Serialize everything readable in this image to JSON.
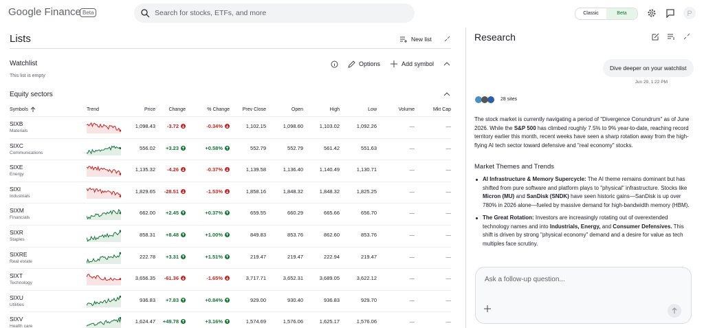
{
  "header": {
    "logo": "Google Finance",
    "badge": "Beta",
    "search_placeholder": "Search for stocks, ETFs, and more",
    "toggle": [
      "Classic",
      "Beta"
    ]
  },
  "lists": {
    "title": "Lists",
    "new_list": "New list",
    "watchlist": {
      "title": "Watchlist",
      "empty": "This list is empty",
      "options": "Options",
      "add_symbol": "Add symbol"
    },
    "sector": {
      "title": "Equity sectors",
      "columns": [
        "Symbols",
        "Trend",
        "Price",
        "Change",
        "% Change",
        "Prev Close",
        "Open",
        "High",
        "Low",
        "Volume",
        "Mkt Cap"
      ],
      "rows": [
        [
          "SIXB",
          "Materials",
          "1,098.43",
          "-3.72",
          "-0.34%",
          "1,102.15",
          "1,098.60",
          "1,103.02",
          "1,092.26",
          "—",
          "—"
        ],
        [
          "SIXC",
          "Communications",
          "556.02",
          "+3.23",
          "+0.58%",
          "552.79",
          "552.79",
          "561.42",
          "551.63",
          "—",
          "—"
        ],
        [
          "SIXE",
          "Energy",
          "1,135.32",
          "-4.26",
          "-0.37%",
          "1,139.58",
          "1,136.40",
          "1,140.49",
          "1,130.71",
          "—",
          "—"
        ],
        [
          "SIXI",
          "Industrials",
          "1,829.65",
          "-28.51",
          "-1.53%",
          "1,858.16",
          "1,848.32",
          "1,848.32",
          "1,825.25",
          "—",
          "—"
        ],
        [
          "SIXM",
          "Financials",
          "662.00",
          "+2.45",
          "+0.37%",
          "659.55",
          "660.29",
          "665.66",
          "656.70",
          "—",
          "—"
        ],
        [
          "SIXR",
          "Staples",
          "858.31",
          "+8.48",
          "+1.00%",
          "849.83",
          "853.76",
          "862.60",
          "853.76",
          "—",
          "—"
        ],
        [
          "SIXRE",
          "Real estate",
          "222.78",
          "+3.31",
          "+1.51%",
          "219.47",
          "219.47",
          "222.94",
          "219.47",
          "—",
          "—"
        ],
        [
          "SIXT",
          "Technology",
          "3,656.35",
          "-61.36",
          "-1.65%",
          "3,717.71",
          "3,652.31",
          "3,689.05",
          "3,622.12",
          "—",
          "—"
        ],
        [
          "SIXU",
          "Utilities",
          "936.83",
          "+7.83",
          "+0.84%",
          "929.00",
          "930.40",
          "936.83",
          "929.70",
          "—",
          "—"
        ],
        [
          "SIXV",
          "Health care",
          "1,624.47",
          "+49.78",
          "+3.16%",
          "1,574.69",
          "1,576.06",
          "1,625.17",
          "1,576.06",
          "—",
          "—"
        ]
      ]
    }
  },
  "research": {
    "title": "Research",
    "user_message": "Dive deeper on your watchlist",
    "timestamp": "Jun 29, 1:22 PM",
    "sources": "28 sites",
    "intro": [
      "The stock market is currently navigating a period of \"Divergence Conundrum\" as of June 2026.  While the ",
      {
        "bold": "S&P 500"
      },
      " has climbed roughly 7.5% to 9% year-to-date, reaching record territory earlier this month, recent weeks have seen a sharp rotation away from the high-flying AI tech sector toward defensive and \"real economy\" stocks."
    ],
    "heading": "Market Themes and Trends",
    "bullets": [
      [
        {
          "bold": "AI Infrastructure & Memory Supercycle:"
        },
        " The AI theme remains dominant but has shifted from pure software and platform plays to \"physical\" infrastructure.  Stocks like ",
        {
          "bold": "Micron (MU)"
        },
        " and ",
        {
          "bold": "SanDisk (SNDK)"
        },
        " have seen historic gains—SanDisk is up over 780% in 2026 alone—fueled by massive demand for high-bandwidth memory (HBM)."
      ],
      [
        {
          "bold": "The Great Rotation:"
        },
        " Investors are increasingly rotating out of overextended technology names and into ",
        {
          "bold": "Industrials, Energy,"
        },
        " and ",
        {
          "bold": "Consumer Defensives."
        },
        " This shift is driven by strong \"physical economy\" demand and a desire for value as tech multiples face scrutiny."
      ]
    ],
    "input_placeholder": "Ask a follow-up question..."
  }
}
